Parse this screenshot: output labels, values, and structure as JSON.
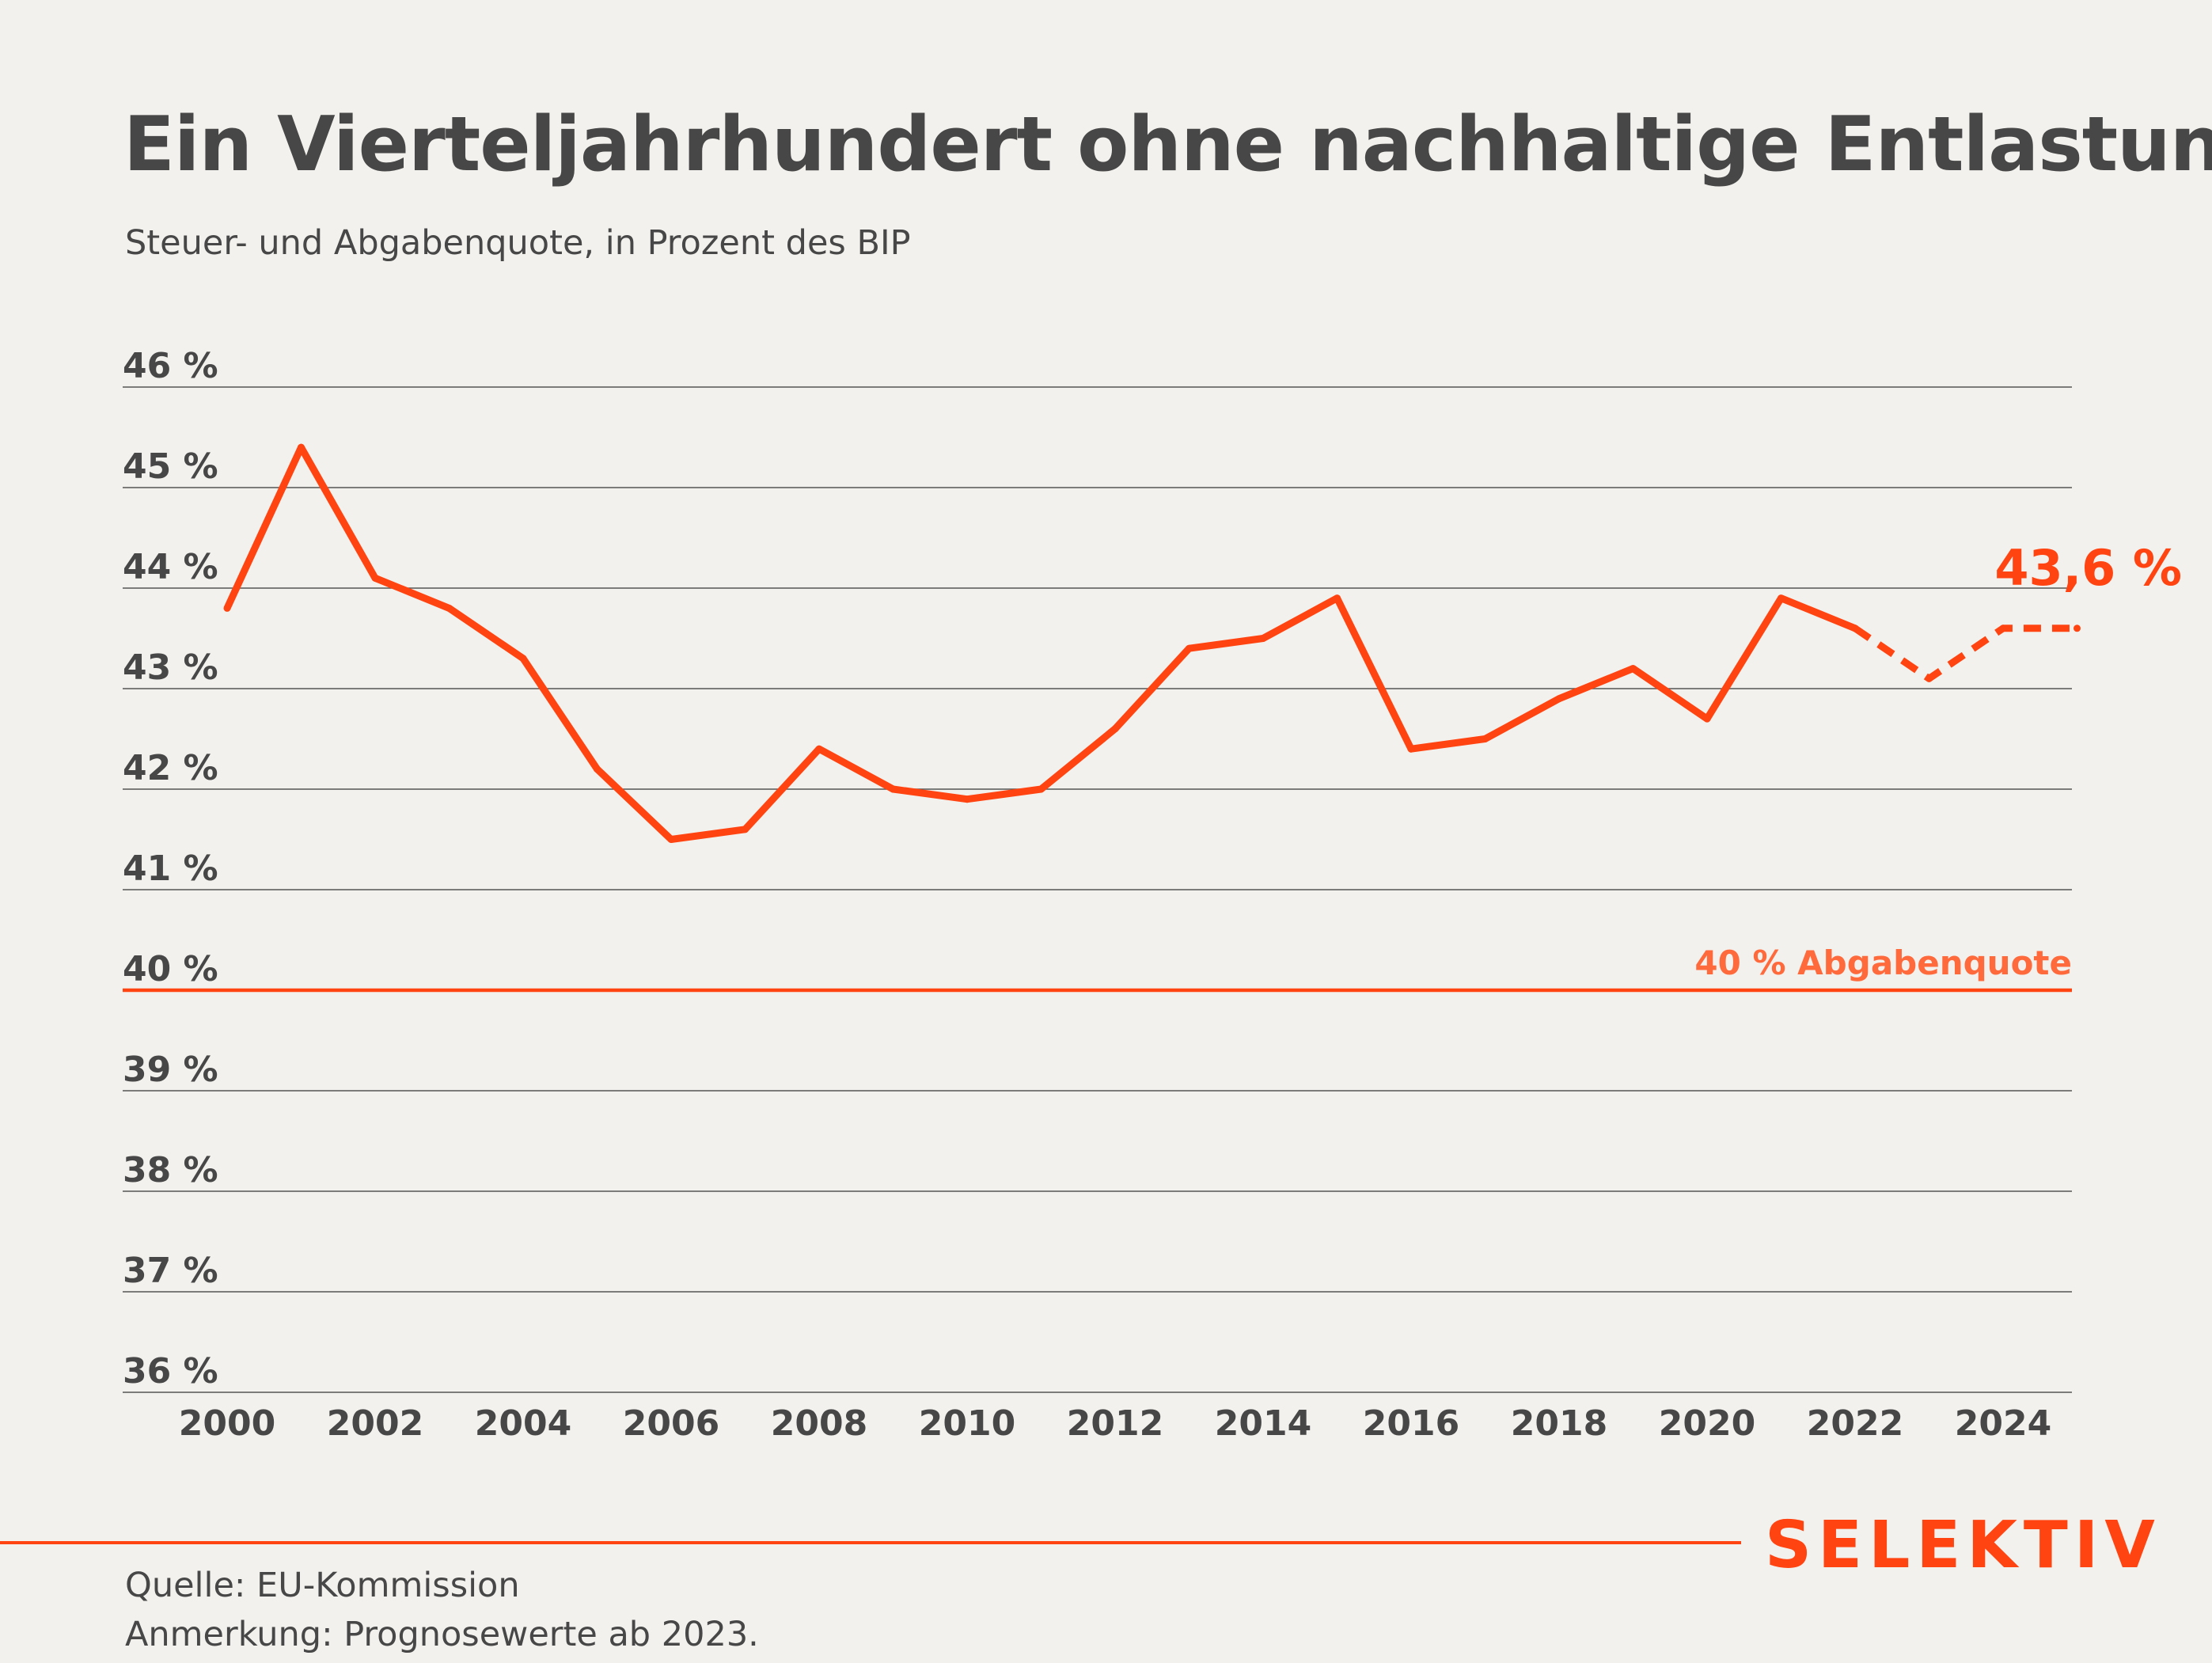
{
  "title": "Ein Vierteljahrhundert ohne nachhaltige Entlastung",
  "subtitle": "Steuer- und Abgabenquote, in Prozent des BIP",
  "footer": {
    "source": "Quelle: EU-Kommission",
    "note": "Anmerkung: Prognosewerte ab 2023.",
    "brand": "SELEKTIV"
  },
  "colors": {
    "line": "#ff4412",
    "reference_label": "#ff6a3d",
    "grid": "#555555",
    "text": "#474747",
    "background": "#f3f1ed"
  },
  "chart_data": {
    "type": "line",
    "ylim": [
      36,
      46
    ],
    "y_ticks": [
      {
        "value": 46,
        "label": "46 %"
      },
      {
        "value": 45,
        "label": "45 %"
      },
      {
        "value": 44,
        "label": "44 %"
      },
      {
        "value": 43,
        "label": "43 %"
      },
      {
        "value": 42,
        "label": "42 %"
      },
      {
        "value": 41,
        "label": "41 %"
      },
      {
        "value": 40,
        "label": "40 %"
      },
      {
        "value": 39,
        "label": "39 %"
      },
      {
        "value": 38,
        "label": "38 %"
      },
      {
        "value": 37,
        "label": "37 %"
      },
      {
        "value": 36,
        "label": "36 %"
      }
    ],
    "x_ticks": [
      {
        "value": 2000,
        "label": "2000"
      },
      {
        "value": 2002,
        "label": "2002"
      },
      {
        "value": 2004,
        "label": "2004"
      },
      {
        "value": 2006,
        "label": "2006"
      },
      {
        "value": 2008,
        "label": "2008"
      },
      {
        "value": 2010,
        "label": "2010"
      },
      {
        "value": 2012,
        "label": "2012"
      },
      {
        "value": 2014,
        "label": "2014"
      },
      {
        "value": 2016,
        "label": "2016"
      },
      {
        "value": 2018,
        "label": "2018"
      },
      {
        "value": 2020,
        "label": "2020"
      },
      {
        "value": 2022,
        "label": "2022"
      },
      {
        "value": 2024,
        "label": "2024"
      }
    ],
    "grid": true,
    "series": [
      {
        "values": [
          {
            "x": 2000,
            "y": 43.8
          },
          {
            "x": 2001,
            "y": 45.4
          },
          {
            "x": 2002,
            "y": 44.1
          },
          {
            "x": 2003,
            "y": 43.8
          },
          {
            "x": 2004,
            "y": 43.3
          },
          {
            "x": 2005,
            "y": 42.2
          },
          {
            "x": 2006,
            "y": 41.5
          },
          {
            "x": 2007,
            "y": 41.6
          },
          {
            "x": 2008,
            "y": 42.4
          },
          {
            "x": 2009,
            "y": 42.0
          },
          {
            "x": 2010,
            "y": 41.9
          },
          {
            "x": 2011,
            "y": 42.0
          },
          {
            "x": 2012,
            "y": 42.6
          },
          {
            "x": 2013,
            "y": 43.4
          },
          {
            "x": 2014,
            "y": 43.5
          },
          {
            "x": 2015,
            "y": 43.9
          },
          {
            "x": 2016,
            "y": 42.4
          },
          {
            "x": 2017,
            "y": 42.5
          },
          {
            "x": 2018,
            "y": 42.9
          },
          {
            "x": 2019,
            "y": 43.2
          },
          {
            "x": 2020,
            "y": 42.7
          },
          {
            "x": 2021,
            "y": 43.9
          },
          {
            "x": 2022,
            "y": 43.6
          }
        ]
      },
      {
        "style": "dashed",
        "values": [
          {
            "x": 2022,
            "y": 43.6
          },
          {
            "x": 2023,
            "y": 43.1
          },
          {
            "x": 2024,
            "y": 43.6
          },
          {
            "x": 2025,
            "y": 43.6
          }
        ]
      }
    ],
    "reference_line": {
      "y": 40,
      "label": "40 % Abgabenquote"
    },
    "end_label": {
      "x": 2025,
      "y": 43.6,
      "label": "43,6 %"
    }
  }
}
